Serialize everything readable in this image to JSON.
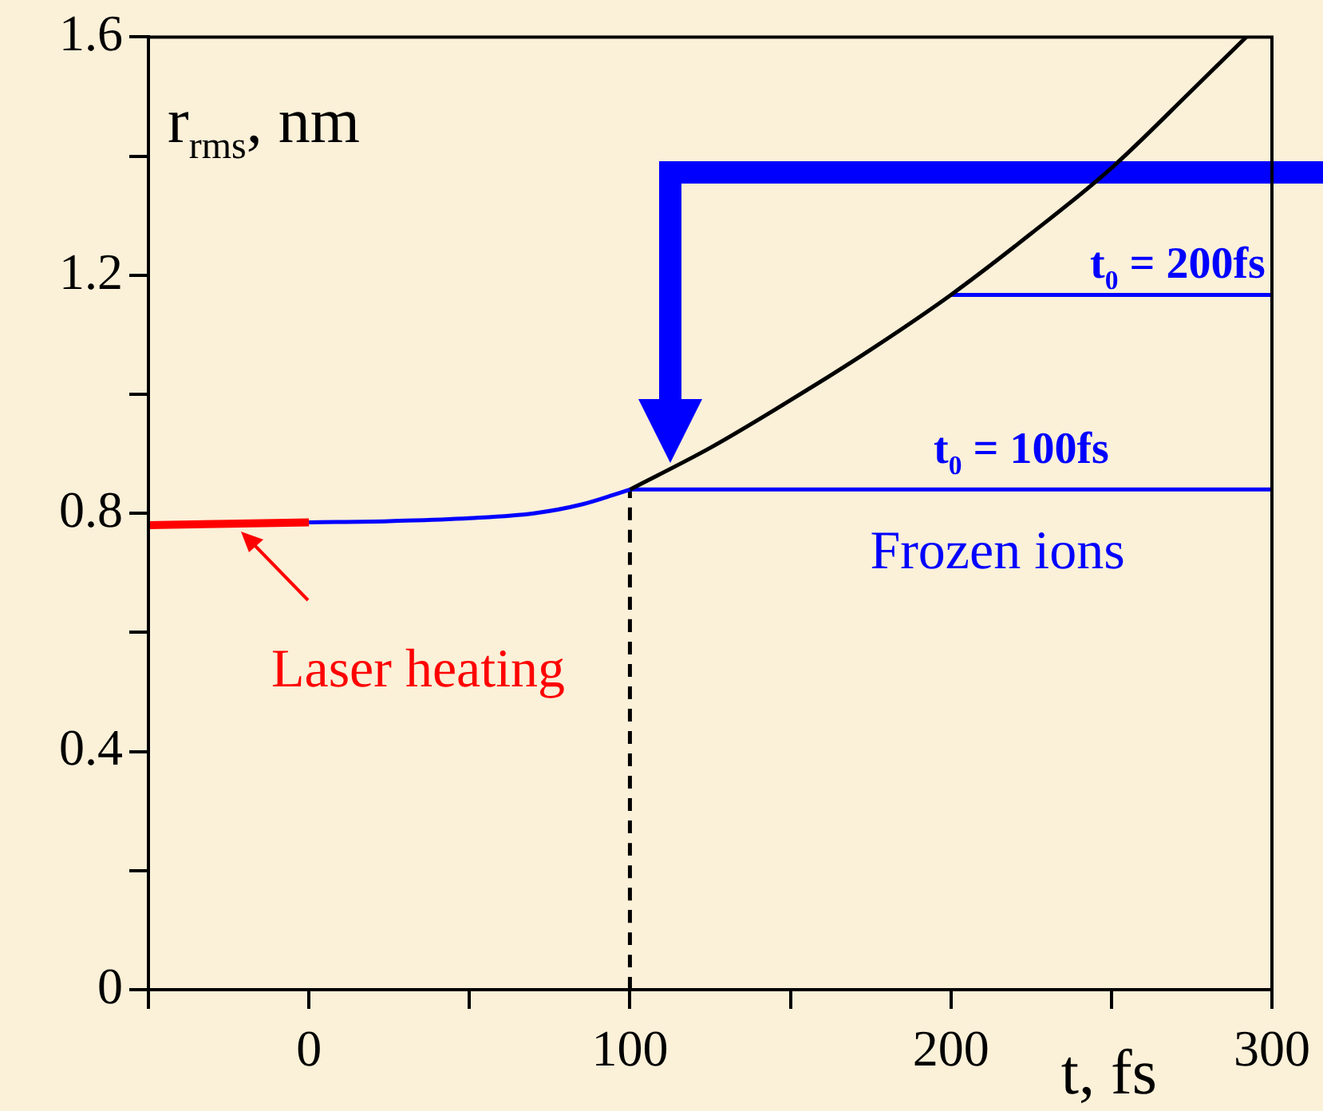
{
  "chart_data": {
    "type": "line",
    "xlabel": "t, fs",
    "ylabel": "r$_{rms}$, nm",
    "xlim": [
      -50,
      300
    ],
    "ylim": [
      0,
      1.6
    ],
    "xticks": [
      {
        "value": -50,
        "label": null
      },
      0,
      {
        "value": 50,
        "label": null
      },
      100,
      {
        "value": 150,
        "label": null
      },
      200,
      {
        "value": 250,
        "label": null
      },
      300
    ],
    "yticks": [
      0,
      {
        "value": 0.2,
        "label": null
      },
      0.4,
      {
        "value": 0.6,
        "label": null
      },
      0.8,
      {
        "value": 1.0,
        "label": null
      },
      1.2,
      {
        "value": 1.4,
        "label": null
      },
      1.6
    ],
    "grid": false,
    "legend": false,
    "marker": "none",
    "series": [
      {
        "color": "#ff0000",
        "x": [
          -50,
          0
        ],
        "values": [
          0.78,
          0.785
        ]
      },
      {
        "color": "#0000ff",
        "x": [
          0,
          25,
          50,
          70,
          85,
          100
        ],
        "values": [
          0.785,
          0.787,
          0.792,
          0.8,
          0.815,
          0.84
        ]
      },
      {
        "color": "#000000",
        "x": [
          100,
          125,
          150,
          175,
          200,
          225,
          250,
          275,
          292
        ],
        "values": [
          0.84,
          0.91,
          0.99,
          1.075,
          1.167,
          1.27,
          1.38,
          1.51,
          1.6
        ]
      },
      {
        "color": "#0000ff",
        "x": [
          100,
          300
        ],
        "values": [
          0.84,
          0.84
        ]
      },
      {
        "color": "#0000ff",
        "x": [
          200,
          300
        ],
        "values": [
          1.167,
          1.167
        ]
      },
      {
        "color": "#000000",
        "x": [
          100,
          100
        ],
        "values": [
          0,
          0.84
        ],
        "line_style": "dashed"
      }
    ],
    "annotations": [
      "t$_{0}$ = 200fs",
      "t$_{0}$ = 100fs",
      "Frozen ions",
      "Laser heating"
    ]
  }
}
